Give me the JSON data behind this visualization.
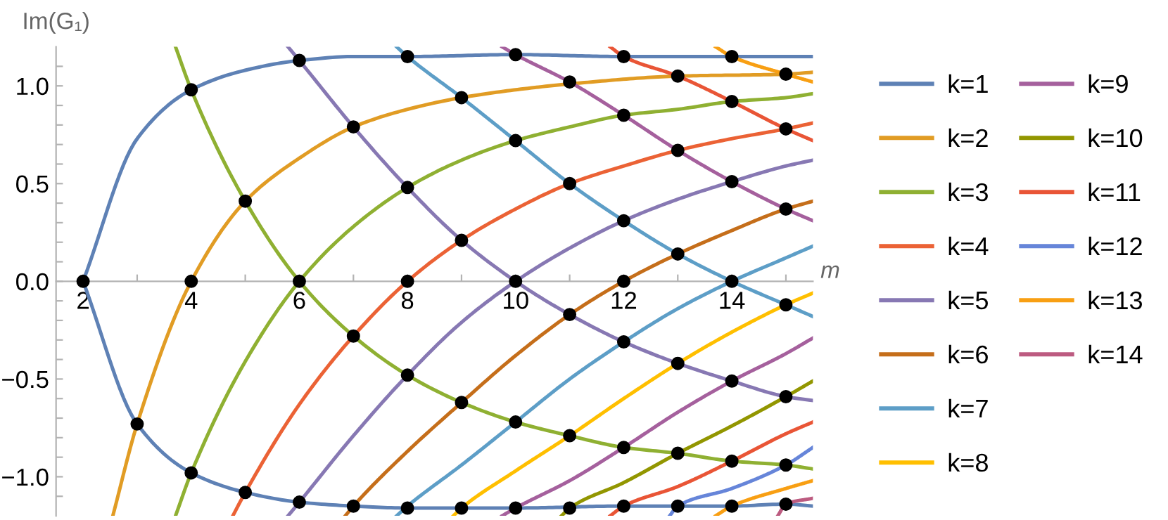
{
  "chart_data": {
    "type": "line",
    "xlabel": "m",
    "ylabel": "Im(G₁)",
    "xlim": [
      1.5,
      15.5
    ],
    "ylim": [
      -1.2,
      1.2
    ],
    "xticks": [
      {
        "value": 2,
        "label": "2"
      },
      {
        "value": 3,
        "label": null
      },
      {
        "value": 4,
        "label": "4"
      },
      {
        "value": 5,
        "label": null
      },
      {
        "value": 6,
        "label": "6"
      },
      {
        "value": 7,
        "label": null
      },
      {
        "value": 8,
        "label": "8"
      },
      {
        "value": 9,
        "label": null
      },
      {
        "value": 10,
        "label": "10"
      },
      {
        "value": 11,
        "label": null
      },
      {
        "value": 12,
        "label": "12"
      },
      {
        "value": 13,
        "label": null
      },
      {
        "value": 14,
        "label": "14"
      },
      {
        "value": 15,
        "label": null
      }
    ],
    "yticks": [
      {
        "value": -1.1,
        "label": null
      },
      {
        "value": -1.0,
        "label": "−1.0"
      },
      {
        "value": -0.9,
        "label": null
      },
      {
        "value": -0.8,
        "label": null
      },
      {
        "value": -0.7,
        "label": null
      },
      {
        "value": -0.6,
        "label": null
      },
      {
        "value": -0.5,
        "label": "−0.5"
      },
      {
        "value": -0.4,
        "label": null
      },
      {
        "value": -0.3,
        "label": null
      },
      {
        "value": -0.2,
        "label": null
      },
      {
        "value": -0.1,
        "label": null
      },
      {
        "value": 0.0,
        "label": "0.0"
      },
      {
        "value": 0.1,
        "label": null
      },
      {
        "value": 0.2,
        "label": null
      },
      {
        "value": 0.3,
        "label": null
      },
      {
        "value": 0.4,
        "label": null
      },
      {
        "value": 0.5,
        "label": "0.5"
      },
      {
        "value": 0.6,
        "label": null
      },
      {
        "value": 0.7,
        "label": null
      },
      {
        "value": 0.8,
        "label": null
      },
      {
        "value": 0.9,
        "label": null
      },
      {
        "value": 1.0,
        "label": "1.0"
      },
      {
        "value": 1.1,
        "label": null
      }
    ],
    "grid": false,
    "legend": "right",
    "marker": "none",
    "line_style": "solid",
    "series": [
      {
        "name": "k=1",
        "color": "#5e81b5",
        "x": [
          2,
          3,
          4,
          5,
          6,
          7,
          8,
          10,
          12,
          14,
          15,
          15.5,
          null,
          2,
          3,
          4,
          5,
          6,
          7,
          8,
          10,
          12,
          14,
          15,
          15.5
        ],
        "values": [
          0,
          0.73,
          0.98,
          1.08,
          1.13,
          1.15,
          1.15,
          1.16,
          1.15,
          1.15,
          1.15,
          1.15,
          null,
          0,
          -0.73,
          -0.98,
          -1.08,
          -1.13,
          -1.15,
          -1.16,
          -1.16,
          -1.15,
          -1.15,
          -1.14,
          -1.15
        ]
      },
      {
        "name": "k=2",
        "color": "#e19c24",
        "x": [
          2.55,
          3,
          4,
          5,
          6,
          7,
          8,
          9,
          10,
          11,
          13,
          15,
          15.5
        ],
        "values": [
          -1.2,
          -0.73,
          0,
          0.41,
          0.63,
          0.79,
          0.88,
          0.94,
          0.98,
          1.01,
          1.05,
          1.06,
          1.07
        ]
      },
      {
        "name": "k=3",
        "color": "#8fb032",
        "x": [
          3.71,
          4,
          5,
          6,
          7,
          8,
          9,
          10,
          11,
          12,
          13,
          14,
          15,
          15.5,
          null,
          3.71,
          4,
          5,
          6,
          7,
          8,
          9,
          10,
          11,
          12,
          13,
          14,
          15,
          15.5
        ],
        "values": [
          1.2,
          0.98,
          0.41,
          0,
          -0.28,
          -0.48,
          -0.62,
          -0.72,
          -0.79,
          -0.85,
          -0.88,
          -0.92,
          -0.94,
          -0.96,
          null,
          -1.2,
          -0.98,
          -0.41,
          0,
          0.28,
          0.48,
          0.62,
          0.72,
          0.79,
          0.85,
          0.88,
          0.92,
          0.94,
          0.96
        ]
      },
      {
        "name": "k=4",
        "color": "#eb6235",
        "x": [
          4.77,
          5,
          6,
          7,
          8,
          9,
          10,
          11,
          12,
          13,
          14,
          15,
          15.5
        ],
        "values": [
          -1.2,
          -1.08,
          -0.63,
          -0.28,
          0,
          0.21,
          0.37,
          0.5,
          0.59,
          0.67,
          0.73,
          0.78,
          0.81
        ]
      },
      {
        "name": "k=5",
        "color": "#8778b3",
        "x": [
          5.79,
          6,
          7,
          8,
          9,
          10,
          11,
          12,
          13,
          14,
          15,
          15.5,
          null,
          5.79,
          6,
          7,
          8,
          9,
          10,
          11,
          12,
          13,
          14,
          15,
          15.5
        ],
        "values": [
          1.2,
          1.13,
          0.79,
          0.48,
          0.21,
          0,
          -0.17,
          -0.31,
          -0.42,
          -0.51,
          -0.59,
          -0.61,
          null,
          -1.2,
          -1.13,
          -0.79,
          -0.48,
          -0.21,
          0,
          0.17,
          0.31,
          0.42,
          0.51,
          0.59,
          0.62
        ]
      },
      {
        "name": "k=6",
        "color": "#c56e1a",
        "x": [
          6.85,
          7,
          8,
          9,
          10,
          11,
          12,
          13,
          14,
          15,
          15.5
        ],
        "values": [
          -1.2,
          -1.15,
          -0.87,
          -0.62,
          -0.38,
          -0.17,
          0,
          0.14,
          0.26,
          0.37,
          0.41
        ]
      },
      {
        "name": "k=7",
        "color": "#5d9ec7",
        "x": [
          7.8,
          8,
          9,
          10,
          11,
          12,
          13,
          14,
          15,
          15.5,
          null,
          7.8,
          8,
          9,
          10,
          11,
          12,
          13,
          14,
          15,
          15.5
        ],
        "values": [
          1.2,
          1.15,
          0.94,
          0.72,
          0.5,
          0.31,
          0.14,
          0,
          -0.12,
          -0.18,
          null,
          -1.2,
          -1.15,
          -0.94,
          -0.72,
          -0.5,
          -0.31,
          -0.14,
          0,
          0.12,
          0.18
        ]
      },
      {
        "name": "k=8",
        "color": "#ffbf00",
        "x": [
          8.85,
          9,
          10,
          11,
          12,
          13,
          14,
          15,
          15.5
        ],
        "values": [
          -1.2,
          -1.16,
          -0.97,
          -0.79,
          -0.6,
          -0.42,
          -0.26,
          -0.12,
          -0.06
        ]
      },
      {
        "name": "k=9",
        "color": "#a5609d",
        "x": [
          9.75,
          10,
          11,
          12,
          13,
          14,
          15,
          15.5,
          null,
          9.75,
          10,
          11,
          12,
          13,
          14,
          15,
          15.5
        ],
        "values": [
          1.2,
          1.16,
          1.02,
          0.85,
          0.67,
          0.51,
          0.37,
          0.31,
          null,
          -1.2,
          -1.16,
          -1.02,
          -0.85,
          -0.67,
          -0.51,
          -0.37,
          -0.29
        ]
      },
      {
        "name": "k=10",
        "color": "#929600",
        "x": [
          10.85,
          11,
          12,
          13,
          14,
          15,
          15.5
        ],
        "values": [
          -1.2,
          -1.16,
          -1.03,
          -0.88,
          -0.74,
          -0.59,
          -0.51
        ]
      },
      {
        "name": "k=11",
        "color": "#e95536",
        "x": [
          11.75,
          12,
          13,
          14,
          15,
          15.5,
          null,
          11.75,
          12,
          13,
          14,
          15,
          15.5
        ],
        "values": [
          1.2,
          1.15,
          1.05,
          0.92,
          0.78,
          0.72,
          null,
          -1.2,
          -1.15,
          -1.05,
          -0.92,
          -0.78,
          -0.72
        ]
      },
      {
        "name": "k=12",
        "color": "#6685d9",
        "x": [
          12.85,
          13,
          14,
          15,
          15.5
        ],
        "values": [
          -1.2,
          -1.15,
          -1.06,
          -0.94,
          -0.85
        ]
      },
      {
        "name": "k=13",
        "color": "#f89f13",
        "x": [
          13.7,
          14,
          15,
          15.5,
          null,
          13.7,
          14,
          15,
          15.5
        ],
        "values": [
          1.2,
          1.15,
          1.06,
          1.02,
          null,
          -1.2,
          -1.15,
          -1.06,
          -1.02
        ]
      },
      {
        "name": "k=14",
        "color": "#bc5b80",
        "x": [
          14.85,
          15,
          15.5
        ],
        "values": [
          -1.2,
          -1.14,
          -1.11
        ]
      },
      {
        "type": "scatter",
        "color": "#000000",
        "marker": "circle",
        "x": [
          2,
          3,
          4,
          4,
          4,
          5,
          5,
          6,
          6,
          6,
          7,
          7,
          7,
          8,
          8,
          8,
          8,
          8,
          9,
          9,
          9,
          9,
          10,
          10,
          10,
          10,
          10,
          11,
          11,
          11,
          11,
          11,
          12,
          12,
          12,
          12,
          12,
          12,
          12,
          13,
          13,
          13,
          13,
          13,
          13,
          14,
          14,
          14,
          14,
          14,
          14,
          14,
          15,
          15,
          15,
          15,
          15,
          15,
          15
        ],
        "values": [
          0,
          -0.73,
          0.98,
          0,
          -0.98,
          0.41,
          -1.08,
          1.13,
          0,
          -1.13,
          0.79,
          -0.28,
          -1.15,
          1.15,
          0.48,
          0,
          -0.48,
          -1.16,
          0.94,
          0.21,
          -0.62,
          -1.16,
          1.16,
          0.72,
          0,
          -0.72,
          -1.16,
          1.02,
          0.5,
          -0.17,
          -0.79,
          -1.16,
          1.15,
          0.85,
          0.31,
          0,
          -0.31,
          -0.85,
          -1.15,
          1.05,
          0.67,
          0.14,
          -0.42,
          -0.88,
          -1.15,
          1.15,
          0.92,
          0.51,
          0,
          -0.51,
          -0.92,
          -1.15,
          1.06,
          0.78,
          0.37,
          -0.12,
          -0.59,
          -0.94,
          -1.14
        ]
      }
    ]
  }
}
